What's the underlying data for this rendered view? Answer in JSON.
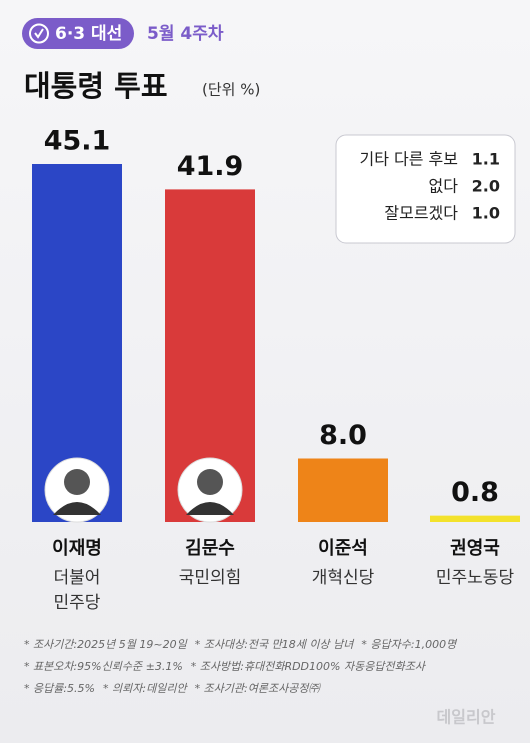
{
  "badge": "6·3 대선",
  "week": "5월 4주차",
  "chart_data": {
    "type": "bar",
    "title": "대통령 투표",
    "unit": "(단위 %)",
    "categories": [
      "이재명",
      "김문수",
      "이준석",
      "권영국"
    ],
    "parties": [
      [
        "더불어",
        "민주당"
      ],
      [
        "국민의힘"
      ],
      [
        "개혁신당"
      ],
      [
        "민주노동당"
      ]
    ],
    "values": [
      45.1,
      41.9,
      8.0,
      0.8
    ],
    "value_labels": [
      "45.1",
      "41.9",
      "8.0",
      "0.8"
    ],
    "colors": [
      "#2b46c6",
      "#d93a3a",
      "#ee8418",
      "#f3e22c"
    ],
    "others": {
      "labels": [
        "기타 다른 후보",
        "없다",
        "잘모르겠다"
      ],
      "values": [
        1.1,
        2.0,
        1.0
      ],
      "value_labels": [
        "1.1",
        "2.0",
        "1.0"
      ]
    }
  },
  "footnotes": [
    [
      "* 조사기간:2025년 5월 19~20일",
      "* 조사대상:전국 만18세 이상 남녀",
      "* 응답자수:1,000명"
    ],
    [
      "* 표본오차:95%신뢰수준 ±3.1%",
      "* 조사방법:휴대전화RDD100% 자동응답전화조사"
    ],
    [
      "* 응답률:5.5%",
      "* 의뢰자:데일리안",
      "* 조사기관:여론조사공정㈜"
    ]
  ],
  "watermark": "데일리안"
}
